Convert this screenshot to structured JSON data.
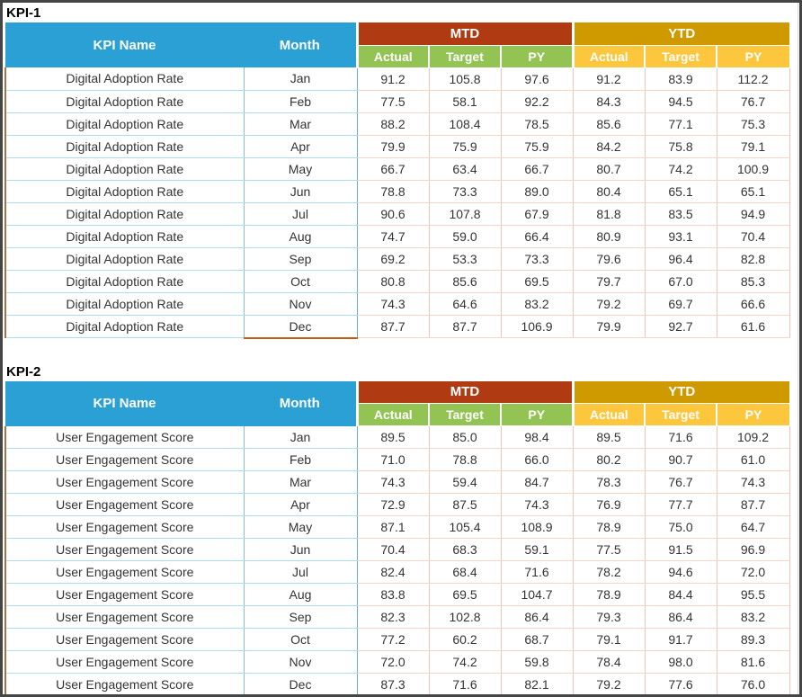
{
  "columns": {
    "kpi_name": "KPI Name",
    "month": "Month",
    "mtd": "MTD",
    "ytd": "YTD",
    "actual": "Actual",
    "target": "Target",
    "py": "PY"
  },
  "colors": {
    "header_blue": "#2AA0D5",
    "mtd_red": "#B03A11",
    "mtd_sub_green": "#92C353",
    "ytd_gold": "#CE9A00",
    "ytd_sub_yellow": "#FCC63D",
    "table_left_border_brown": "#A9713F",
    "dec_month_underline_orange": "#C55A11",
    "row_border_blue": "#AEDCEC",
    "row_border_pink": "#F4D5CA",
    "frame_border": "#454545"
  },
  "sections": [
    {
      "title": "KPI-1",
      "kpi_name": "Digital Adoption Rate",
      "rows": [
        {
          "month": "Jan",
          "mtd": [
            "91.2",
            "105.8",
            "97.6"
          ],
          "ytd": [
            "91.2",
            "83.9",
            "112.2"
          ]
        },
        {
          "month": "Feb",
          "mtd": [
            "77.5",
            "58.1",
            "92.2"
          ],
          "ytd": [
            "84.3",
            "94.5",
            "76.7"
          ]
        },
        {
          "month": "Mar",
          "mtd": [
            "88.2",
            "108.4",
            "78.5"
          ],
          "ytd": [
            "85.6",
            "77.1",
            "75.3"
          ]
        },
        {
          "month": "Apr",
          "mtd": [
            "79.9",
            "75.9",
            "75.9"
          ],
          "ytd": [
            "84.2",
            "75.8",
            "79.1"
          ]
        },
        {
          "month": "May",
          "mtd": [
            "66.7",
            "63.4",
            "66.7"
          ],
          "ytd": [
            "80.7",
            "74.2",
            "100.9"
          ]
        },
        {
          "month": "Jun",
          "mtd": [
            "78.8",
            "73.3",
            "89.0"
          ],
          "ytd": [
            "80.4",
            "65.1",
            "65.1"
          ]
        },
        {
          "month": "Jul",
          "mtd": [
            "90.6",
            "107.8",
            "67.9"
          ],
          "ytd": [
            "81.8",
            "83.5",
            "94.9"
          ]
        },
        {
          "month": "Aug",
          "mtd": [
            "74.7",
            "59.0",
            "66.4"
          ],
          "ytd": [
            "80.9",
            "93.1",
            "70.4"
          ]
        },
        {
          "month": "Sep",
          "mtd": [
            "69.2",
            "53.3",
            "73.3"
          ],
          "ytd": [
            "79.6",
            "96.4",
            "82.8"
          ]
        },
        {
          "month": "Oct",
          "mtd": [
            "80.8",
            "85.6",
            "69.5"
          ],
          "ytd": [
            "79.7",
            "67.0",
            "85.3"
          ]
        },
        {
          "month": "Nov",
          "mtd": [
            "74.3",
            "64.6",
            "83.2"
          ],
          "ytd": [
            "79.2",
            "69.7",
            "66.6"
          ]
        },
        {
          "month": "Dec",
          "mtd": [
            "87.7",
            "87.7",
            "106.9"
          ],
          "ytd": [
            "79.9",
            "92.7",
            "61.6"
          ]
        }
      ]
    },
    {
      "title": "KPI-2",
      "kpi_name": "User Engagement Score",
      "rows": [
        {
          "month": "Jan",
          "mtd": [
            "89.5",
            "85.0",
            "98.4"
          ],
          "ytd": [
            "89.5",
            "71.6",
            "109.2"
          ]
        },
        {
          "month": "Feb",
          "mtd": [
            "71.0",
            "78.8",
            "66.0"
          ],
          "ytd": [
            "80.2",
            "90.7",
            "61.0"
          ]
        },
        {
          "month": "Mar",
          "mtd": [
            "74.3",
            "59.4",
            "84.7"
          ],
          "ytd": [
            "78.3",
            "76.7",
            "74.3"
          ]
        },
        {
          "month": "Apr",
          "mtd": [
            "72.9",
            "87.5",
            "74.3"
          ],
          "ytd": [
            "76.9",
            "77.7",
            "87.7"
          ]
        },
        {
          "month": "May",
          "mtd": [
            "87.1",
            "105.4",
            "108.9"
          ],
          "ytd": [
            "78.9",
            "75.0",
            "64.7"
          ]
        },
        {
          "month": "Jun",
          "mtd": [
            "70.4",
            "68.3",
            "59.1"
          ],
          "ytd": [
            "77.5",
            "91.5",
            "96.9"
          ]
        },
        {
          "month": "Jul",
          "mtd": [
            "82.4",
            "68.4",
            "71.6"
          ],
          "ytd": [
            "78.2",
            "94.6",
            "72.0"
          ]
        },
        {
          "month": "Aug",
          "mtd": [
            "83.8",
            "69.5",
            "104.7"
          ],
          "ytd": [
            "78.9",
            "84.4",
            "95.5"
          ]
        },
        {
          "month": "Sep",
          "mtd": [
            "82.3",
            "102.8",
            "86.4"
          ],
          "ytd": [
            "79.3",
            "86.4",
            "83.2"
          ]
        },
        {
          "month": "Oct",
          "mtd": [
            "77.2",
            "60.2",
            "68.7"
          ],
          "ytd": [
            "79.1",
            "91.7",
            "89.3"
          ]
        },
        {
          "month": "Nov",
          "mtd": [
            "72.0",
            "74.2",
            "59.8"
          ],
          "ytd": [
            "78.4",
            "98.0",
            "81.6"
          ]
        },
        {
          "month": "Dec",
          "mtd": [
            "87.3",
            "71.6",
            "82.1"
          ],
          "ytd": [
            "79.2",
            "77.6",
            "76.0"
          ]
        }
      ]
    }
  ]
}
